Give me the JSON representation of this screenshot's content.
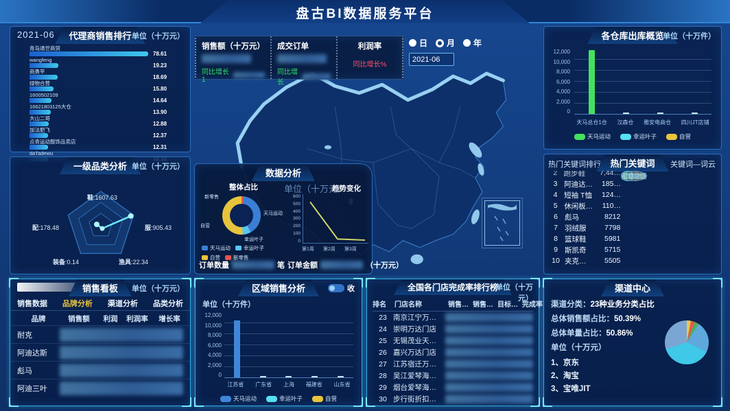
{
  "header": {
    "title": "盘古BI数据服务平台"
  },
  "agent_panel": {
    "date": "2021-06",
    "title": "代理商销售排行",
    "unit": "单位（十万元）",
    "chart_type": "bar-horizontal",
    "chart_max": 80,
    "items": [
      {
        "name": "青岛通世商贸",
        "value": "78.61"
      },
      {
        "name": "wangfeng",
        "value": "19.23"
      },
      {
        "name": "商勇平",
        "value": "18.69"
      },
      {
        "name": "绿物合营",
        "value": "15.80"
      },
      {
        "name": "1600502109",
        "value": "14.64"
      },
      {
        "name": "16621803125大仓",
        "value": "13.90"
      },
      {
        "name": "大山二哥",
        "value": "12.88"
      },
      {
        "name": "加法肥飞",
        "value": "12.37"
      },
      {
        "name": "点青运动服饰品卖店",
        "value": "12.31"
      },
      {
        "name": "daTadewu",
        "value": "12.12"
      }
    ]
  },
  "radar_panel": {
    "title": "一级品类分析",
    "unit": "单位（十万元）",
    "chart_type": "radar",
    "points": [
      {
        "name": "鞋",
        "value": "1607.63"
      },
      {
        "name": "服",
        "value": "905.43"
      },
      {
        "name": "渔具",
        "value": "22.34"
      },
      {
        "name": "装备",
        "value": "0.14"
      },
      {
        "name": "配",
        "value": "178.48"
      }
    ]
  },
  "kpi": {
    "sales_label": "销售额（十万元）",
    "sales_growth": "同比增长1",
    "orders_label": "成交订单",
    "orders_growth": "同比增长",
    "profit_label": "利润率",
    "profit_growth": "同比增长%",
    "period_options": [
      "日",
      "月",
      "年"
    ],
    "period_selected": "月",
    "date_value": "2021-06"
  },
  "data_analysis": {
    "title": "数据分析",
    "donut": {
      "label": "整体占比",
      "segments": [
        {
          "name": "新零售",
          "color": "#e4544e",
          "pct": 2
        },
        {
          "name": "天马运动",
          "color": "#3a7fd5",
          "pct": 40
        },
        {
          "name": "幸运叶子",
          "color": "#58c7f0",
          "pct": 7
        },
        {
          "name": "自营",
          "color": "#e8c43c",
          "pct": 51
        }
      ],
      "legend": [
        {
          "name": "天马运动",
          "color": "#3a7fd5"
        },
        {
          "name": "幸运叶子",
          "color": "#58c7f0"
        },
        {
          "name": "自营",
          "color": "#e8c43c"
        },
        {
          "name": "新零售",
          "color": "#e4544e"
        }
      ]
    },
    "trend": {
      "label": "趋势变化",
      "unit": "单位（十万元）",
      "y_ticks": [
        "600",
        "500",
        "400",
        "300",
        "200",
        "100",
        "0"
      ],
      "y_max": 700,
      "x_labels": [
        "第1周",
        "第2周",
        "第3周"
      ],
      "values": [
        640,
        30,
        12
      ]
    },
    "order_count_label": "订单数量",
    "order_count_suffix": "笔",
    "order_amount_label": "订单金额",
    "order_amount_suffix": "（十万元）"
  },
  "warehouse_panel": {
    "title": "各仓库出库概览",
    "unit": "单位（十万件）",
    "chart_type": "bar",
    "y_ticks": [
      "12,000",
      "10,000",
      "8,000",
      "6,000",
      "4,000",
      "2,000",
      "0"
    ],
    "max": 12000,
    "categories": [
      "天马总仓1仓",
      "汉森仓",
      "雅安电商仓",
      "四川JT店铺"
    ],
    "values": [
      11600,
      110,
      70,
      90
    ],
    "legend": [
      {
        "name": "天马运动",
        "color": "#45e060"
      },
      {
        "name": "幸运叶子",
        "color": "#58e0f0"
      },
      {
        "name": "自营",
        "color": "#e8c43c"
      }
    ]
  },
  "keywords_panel": {
    "left_title": "热门关键词排行",
    "title": "热门关键词",
    "right_title": "关键词—词云",
    "rows": [
      {
        "rank": "2",
        "word": "跑步鞋",
        "value": "7,44…"
      },
      {
        "rank": "3",
        "word": "阿迪达…",
        "value": "185…"
      },
      {
        "rank": "4",
        "word": "短袖 T恤",
        "value": "124…"
      },
      {
        "rank": "5",
        "word": "休闲板…",
        "value": "110…"
      },
      {
        "rank": "6",
        "word": "彪马",
        "value": "8212"
      },
      {
        "rank": "7",
        "word": "羽绒服",
        "value": "7798"
      },
      {
        "rank": "8",
        "word": "篮球鞋",
        "value": "5981"
      },
      {
        "rank": "9",
        "word": "斯凯奇",
        "value": "5715"
      },
      {
        "rank": "10",
        "word": "夹克…",
        "value": "5505"
      }
    ],
    "bubbles": [
      {
        "text": "跑步鞋",
        "color": "#e05a82",
        "text_color": "#ff9fb8"
      },
      {
        "text": "短袖 T恤",
        "color": "#cfc040",
        "text_color": "#e8dc6a"
      },
      {
        "text": "耐克",
        "color": "#58c8e8",
        "text_color": "#eaffff"
      },
      {
        "text": "阿迪达斯",
        "color": "#48d878",
        "text_color": "#8af0ac"
      },
      {
        "text": "休闲板鞋",
        "color": "#4f84c4",
        "text_color": "#7fa8d8"
      }
    ]
  },
  "channel_panel": {
    "title": "渠道中心",
    "lines": [
      {
        "label": "渠道分类：",
        "value": "23种业务分类占比"
      },
      {
        "label": "总体销售额占比：",
        "value": "50.39%"
      },
      {
        "label": "总体单量占比：",
        "value": "50.86%"
      },
      {
        "label": "单位（十万元）",
        "value": ""
      }
    ],
    "list": [
      "1、京东",
      "2、淘宝",
      "3、宝唯JIT"
    ],
    "chart_type": "pie",
    "pie": [
      {
        "color": "#e8c94a",
        "pct": 3
      },
      {
        "color": "#e05a52",
        "pct": 3
      },
      {
        "color": "#4fae58",
        "pct": 3
      },
      {
        "color": "#5ea8dd",
        "pct": 23
      },
      {
        "color": "#3fc8e8",
        "pct": 38
      },
      {
        "color": "#7ba6d4",
        "pct": 30
      }
    ]
  },
  "sales_board": {
    "title": "销售看板",
    "unit": "单位（十万元）",
    "tabs": [
      "销售数据",
      "品牌分析",
      "渠道分析",
      "品类分析"
    ],
    "active_tab": "品牌分析",
    "headers": [
      "品牌",
      "销售额",
      "利润",
      "利润率",
      "增长率"
    ],
    "rows": [
      "耐克",
      "阿迪达斯",
      "彪马",
      "阿迪三叶"
    ]
  },
  "region_panel": {
    "title": "区域销售分析",
    "collapse_label": "收",
    "unit": "单位（十万件）",
    "chart_type": "bar",
    "y_ticks": [
      "12,000",
      "10,000",
      "8,000",
      "6,000",
      "4,000",
      "2,000",
      "0"
    ],
    "max": 12000,
    "categories": [
      "江苏省",
      "广东省",
      "上海",
      "福建省",
      "山东省"
    ],
    "values": [
      10400,
      70,
      50,
      60,
      55
    ],
    "legend": [
      {
        "name": "天马运动",
        "color": "#3f86d8"
      },
      {
        "name": "幸运叶子",
        "color": "#58e0f0"
      },
      {
        "name": "自营",
        "color": "#e8c43c"
      }
    ]
  },
  "store_panel": {
    "title": "全国各门店完成率排行榜",
    "unit": "单位（十万元）",
    "headers": [
      "排名",
      "门店名称",
      "销售…",
      "销售…",
      "目标…",
      "完成率"
    ],
    "rows": [
      {
        "rank": "23",
        "name": "南京江宁万…"
      },
      {
        "rank": "24",
        "name": "崇明万达门店"
      },
      {
        "rank": "25",
        "name": "无锡茂业天…"
      },
      {
        "rank": "26",
        "name": "嘉兴万达门店"
      },
      {
        "rank": "27",
        "name": "江苏宿迁万…"
      },
      {
        "rank": "28",
        "name": "吴江爱琴海…"
      },
      {
        "rank": "29",
        "name": "烟台爱琴海…"
      },
      {
        "rank": "30",
        "name": "步行街折扣…"
      }
    ]
  }
}
